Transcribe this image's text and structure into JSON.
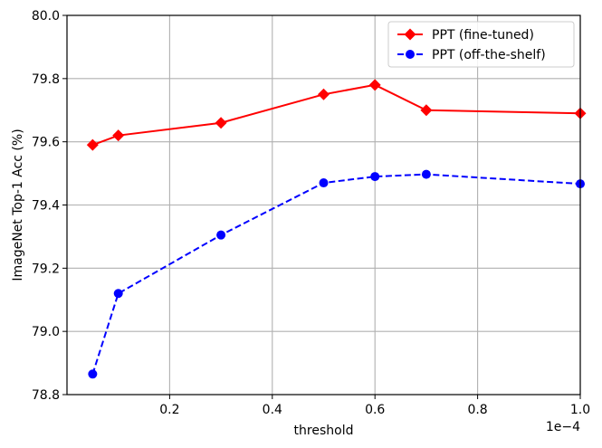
{
  "chart_data": {
    "type": "line",
    "xlabel": "threshold",
    "ylabel": "ImageNet Top-1 Acc (%)",
    "x_offset_label": "1e−4",
    "xlim": [
      0.0,
      1.0
    ],
    "ylim": [
      78.8,
      80.0
    ],
    "x_ticks": [
      0.2,
      0.4,
      0.6,
      0.8,
      1.0
    ],
    "x_tick_labels": [
      "0.2",
      "0.4",
      "0.6",
      "0.8",
      "1.0"
    ],
    "y_ticks": [
      78.8,
      79.0,
      79.2,
      79.4,
      79.6,
      79.8,
      80.0
    ],
    "y_tick_labels": [
      "78.8",
      "79.0",
      "79.2",
      "79.4",
      "79.6",
      "79.8",
      "80.0"
    ],
    "grid": true,
    "legend_position": "top-right",
    "series": [
      {
        "name": "PPT (fine-tuned)",
        "color": "#ff0000",
        "line_style": "solid",
        "marker": "diamond",
        "x": [
          0.05,
          0.1,
          0.3,
          0.5,
          0.6,
          0.7,
          1.0
        ],
        "values": [
          79.59,
          79.62,
          79.66,
          79.75,
          79.78,
          79.7,
          79.69
        ]
      },
      {
        "name": "PPT (off-the-shelf)",
        "color": "#0000ff",
        "line_style": "dashed",
        "marker": "circle",
        "x": [
          0.05,
          0.1,
          0.3,
          0.5,
          0.6,
          0.7,
          1.0
        ],
        "values": [
          78.865,
          79.12,
          79.305,
          79.47,
          79.49,
          79.497,
          79.467
        ]
      }
    ]
  }
}
